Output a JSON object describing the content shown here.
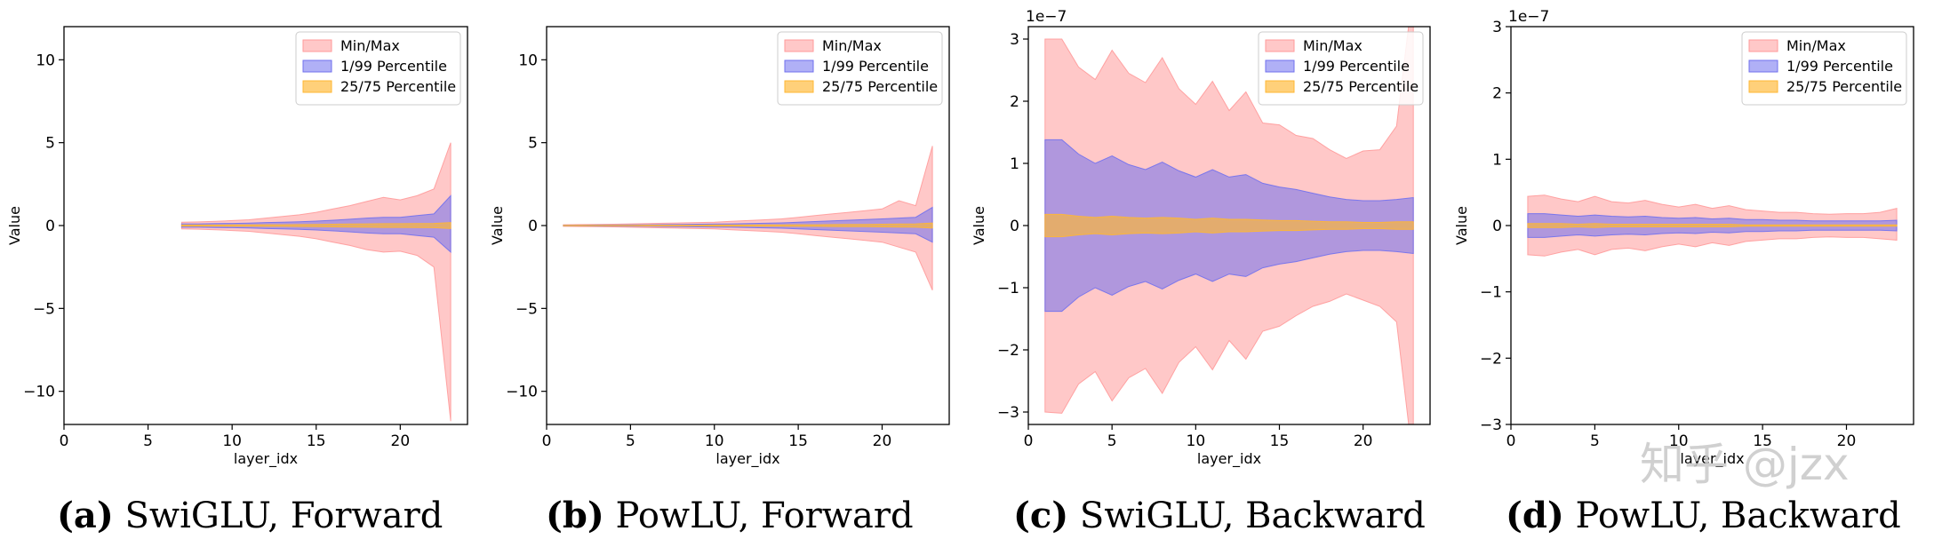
{
  "colors": {
    "minmax": "#ff9a9a",
    "p1_99": "#7070ee",
    "p25_75": "#ffb733",
    "axis": "#000000",
    "watermark": "#c8c8c8"
  },
  "watermark": "知乎 @jzx",
  "chart_data": [
    {
      "type": "area",
      "caption_label": "(a)",
      "caption_text": "SwiGLU, Forward",
      "xlabel": "layer_idx",
      "ylabel": "Value",
      "xlim": [
        0,
        24
      ],
      "ylim": [
        -12,
        12
      ],
      "xticks": [
        0,
        5,
        10,
        15,
        20
      ],
      "yticks": [
        -10,
        -5,
        0,
        5,
        10
      ],
      "exponent": "",
      "legend_position": "upper-right",
      "legend": [
        "Min/Max",
        "1/99 Percentile",
        "25/75 Percentile"
      ],
      "x": [
        7,
        8,
        9,
        10,
        11,
        12,
        13,
        14,
        15,
        16,
        17,
        18,
        19,
        20,
        21,
        22,
        23
      ],
      "series": [
        {
          "name": "Min/Max",
          "upper": [
            0.2,
            0.22,
            0.25,
            0.3,
            0.35,
            0.45,
            0.55,
            0.65,
            0.8,
            1.0,
            1.2,
            1.45,
            1.7,
            1.55,
            1.8,
            2.2,
            5.0
          ],
          "lower": [
            -0.2,
            -0.22,
            -0.25,
            -0.3,
            -0.35,
            -0.45,
            -0.55,
            -0.65,
            -0.8,
            -1.0,
            -1.2,
            -1.45,
            -1.6,
            -1.55,
            -1.8,
            -2.5,
            -11.8
          ]
        },
        {
          "name": "1/99 Percentile",
          "upper": [
            0.1,
            0.1,
            0.12,
            0.13,
            0.15,
            0.18,
            0.2,
            0.23,
            0.27,
            0.32,
            0.38,
            0.45,
            0.5,
            0.5,
            0.6,
            0.7,
            1.8
          ],
          "lower": [
            -0.1,
            -0.1,
            -0.12,
            -0.13,
            -0.15,
            -0.18,
            -0.2,
            -0.23,
            -0.27,
            -0.32,
            -0.38,
            -0.45,
            -0.5,
            -0.5,
            -0.6,
            -0.7,
            -1.6
          ]
        },
        {
          "name": "25/75 Percentile",
          "upper": [
            0.03,
            0.03,
            0.03,
            0.04,
            0.04,
            0.05,
            0.05,
            0.06,
            0.07,
            0.08,
            0.09,
            0.1,
            0.11,
            0.11,
            0.12,
            0.13,
            0.18
          ],
          "lower": [
            -0.03,
            -0.03,
            -0.03,
            -0.04,
            -0.04,
            -0.05,
            -0.05,
            -0.06,
            -0.07,
            -0.08,
            -0.09,
            -0.1,
            -0.11,
            -0.11,
            -0.12,
            -0.13,
            -0.18
          ]
        }
      ]
    },
    {
      "type": "area",
      "caption_label": "(b)",
      "caption_text": "PowLU, Forward",
      "xlabel": "layer_idx",
      "ylabel": "Value",
      "xlim": [
        0,
        24
      ],
      "ylim": [
        -12,
        12
      ],
      "xticks": [
        0,
        5,
        10,
        15,
        20
      ],
      "yticks": [
        -10,
        -5,
        0,
        5,
        10
      ],
      "exponent": "",
      "legend_position": "upper-right",
      "legend": [
        "Min/Max",
        "1/99 Percentile",
        "25/75 Percentile"
      ],
      "x": [
        1,
        2,
        3,
        4,
        5,
        6,
        7,
        8,
        9,
        10,
        11,
        12,
        13,
        14,
        15,
        16,
        17,
        18,
        19,
        20,
        21,
        22,
        23
      ],
      "series": [
        {
          "name": "Min/Max",
          "upper": [
            0.05,
            0.06,
            0.07,
            0.08,
            0.1,
            0.12,
            0.14,
            0.16,
            0.18,
            0.2,
            0.25,
            0.3,
            0.35,
            0.4,
            0.5,
            0.6,
            0.7,
            0.8,
            0.9,
            1.0,
            1.5,
            1.2,
            4.8
          ],
          "lower": [
            -0.05,
            -0.06,
            -0.07,
            -0.08,
            -0.1,
            -0.12,
            -0.14,
            -0.16,
            -0.18,
            -0.2,
            -0.25,
            -0.3,
            -0.35,
            -0.4,
            -0.5,
            -0.6,
            -0.7,
            -0.8,
            -0.9,
            -1.0,
            -1.3,
            -1.6,
            -3.9
          ]
        },
        {
          "name": "1/99 Percentile",
          "upper": [
            0.02,
            0.02,
            0.03,
            0.03,
            0.04,
            0.05,
            0.06,
            0.07,
            0.08,
            0.09,
            0.1,
            0.12,
            0.14,
            0.16,
            0.2,
            0.24,
            0.28,
            0.32,
            0.36,
            0.4,
            0.45,
            0.5,
            1.1
          ],
          "lower": [
            -0.02,
            -0.02,
            -0.03,
            -0.03,
            -0.04,
            -0.05,
            -0.06,
            -0.07,
            -0.08,
            -0.09,
            -0.1,
            -0.12,
            -0.14,
            -0.16,
            -0.2,
            -0.24,
            -0.28,
            -0.32,
            -0.36,
            -0.4,
            -0.45,
            -0.5,
            -1.0
          ]
        },
        {
          "name": "25/75 Percentile",
          "upper": [
            0.01,
            0.01,
            0.01,
            0.01,
            0.01,
            0.02,
            0.02,
            0.02,
            0.02,
            0.03,
            0.03,
            0.03,
            0.04,
            0.04,
            0.05,
            0.05,
            0.06,
            0.07,
            0.07,
            0.08,
            0.09,
            0.1,
            0.15
          ],
          "lower": [
            -0.01,
            -0.01,
            -0.01,
            -0.01,
            -0.01,
            -0.02,
            -0.02,
            -0.02,
            -0.02,
            -0.03,
            -0.03,
            -0.03,
            -0.04,
            -0.04,
            -0.05,
            -0.05,
            -0.06,
            -0.07,
            -0.07,
            -0.08,
            -0.09,
            -0.1,
            -0.15
          ]
        }
      ]
    },
    {
      "type": "area",
      "caption_label": "(c)",
      "caption_text": "SwiGLU, Backward",
      "xlabel": "layer_idx",
      "ylabel": "Value",
      "xlim": [
        0,
        24
      ],
      "ylim": [
        -3.2,
        3.2
      ],
      "xticks": [
        0,
        5,
        10,
        15,
        20
      ],
      "yticks": [
        -3,
        -2,
        -1,
        0,
        1,
        2,
        3
      ],
      "exponent": "1e−7",
      "legend_position": "upper-right",
      "legend": [
        "Min/Max",
        "1/99 Percentile",
        "25/75 Percentile"
      ],
      "x": [
        1,
        2,
        3,
        4,
        5,
        6,
        7,
        8,
        9,
        10,
        11,
        12,
        13,
        14,
        15,
        16,
        17,
        18,
        19,
        20,
        21,
        22,
        23
      ],
      "series": [
        {
          "name": "Min/Max",
          "upper": [
            3.0,
            3.0,
            2.55,
            2.35,
            2.82,
            2.45,
            2.3,
            2.7,
            2.2,
            1.95,
            2.32,
            1.85,
            2.15,
            1.65,
            1.62,
            1.45,
            1.4,
            1.22,
            1.08,
            1.2,
            1.22,
            1.6,
            null
          ],
          "lower": [
            -3.0,
            -3.02,
            -2.55,
            -2.35,
            -2.82,
            -2.45,
            -2.3,
            -2.7,
            -2.2,
            -1.95,
            -2.32,
            -1.85,
            -2.15,
            -1.7,
            -1.62,
            -1.45,
            -1.3,
            -1.22,
            -1.1,
            -1.2,
            -1.3,
            -1.55,
            null
          ]
        },
        {
          "name": "1/99 Percentile",
          "upper": [
            1.38,
            1.38,
            1.15,
            1.0,
            1.12,
            0.98,
            0.9,
            1.02,
            0.88,
            0.78,
            0.9,
            0.78,
            0.82,
            0.68,
            0.62,
            0.58,
            0.52,
            0.46,
            0.42,
            0.4,
            0.4,
            0.42,
            0.45
          ],
          "lower": [
            -1.38,
            -1.38,
            -1.15,
            -1.0,
            -1.12,
            -0.98,
            -0.9,
            -1.02,
            -0.88,
            -0.78,
            -0.9,
            -0.78,
            -0.82,
            -0.68,
            -0.62,
            -0.58,
            -0.52,
            -0.46,
            -0.42,
            -0.4,
            -0.4,
            -0.42,
            -0.45
          ]
        },
        {
          "name": "25/75 Percentile",
          "upper": [
            0.18,
            0.18,
            0.15,
            0.13,
            0.15,
            0.13,
            0.12,
            0.13,
            0.12,
            0.1,
            0.12,
            0.1,
            0.1,
            0.09,
            0.08,
            0.08,
            0.07,
            0.06,
            0.06,
            0.05,
            0.05,
            0.06,
            0.06
          ],
          "lower": [
            -0.18,
            -0.18,
            -0.15,
            -0.13,
            -0.15,
            -0.13,
            -0.12,
            -0.13,
            -0.12,
            -0.1,
            -0.12,
            -0.1,
            -0.1,
            -0.09,
            -0.08,
            -0.08,
            -0.07,
            -0.06,
            -0.06,
            -0.05,
            -0.05,
            -0.06,
            -0.06
          ]
        }
      ]
    },
    {
      "type": "area",
      "caption_label": "(d)",
      "caption_text": "PowLU, Backward",
      "xlabel": "layer_idx",
      "ylabel": "Value",
      "xlim": [
        0,
        24
      ],
      "ylim": [
        -3.0,
        3.0
      ],
      "xticks": [
        0,
        5,
        10,
        15,
        20
      ],
      "yticks": [
        -3,
        -2,
        -1,
        0,
        1,
        2,
        3
      ],
      "exponent": "1e−7",
      "legend_position": "upper-right",
      "legend": [
        "Min/Max",
        "1/99 Percentile",
        "25/75 Percentile"
      ],
      "x": [
        1,
        2,
        3,
        4,
        5,
        6,
        7,
        8,
        9,
        10,
        11,
        12,
        13,
        14,
        15,
        16,
        17,
        18,
        19,
        20,
        21,
        22,
        23
      ],
      "series": [
        {
          "name": "Min/Max",
          "upper": [
            0.44,
            0.46,
            0.4,
            0.36,
            0.44,
            0.36,
            0.34,
            0.38,
            0.32,
            0.28,
            0.32,
            0.26,
            0.3,
            0.24,
            0.22,
            0.2,
            0.2,
            0.18,
            0.17,
            0.18,
            0.18,
            0.2,
            0.26
          ],
          "lower": [
            -0.44,
            -0.46,
            -0.4,
            -0.36,
            -0.44,
            -0.36,
            -0.34,
            -0.38,
            -0.32,
            -0.28,
            -0.32,
            -0.26,
            -0.3,
            -0.24,
            -0.22,
            -0.2,
            -0.2,
            -0.18,
            -0.17,
            -0.18,
            -0.18,
            -0.2,
            -0.22
          ]
        },
        {
          "name": "1/99 Percentile",
          "upper": [
            0.18,
            0.18,
            0.16,
            0.14,
            0.16,
            0.14,
            0.13,
            0.14,
            0.12,
            0.11,
            0.12,
            0.1,
            0.11,
            0.09,
            0.09,
            0.08,
            0.08,
            0.07,
            0.07,
            0.07,
            0.07,
            0.07,
            0.08
          ],
          "lower": [
            -0.18,
            -0.18,
            -0.16,
            -0.14,
            -0.16,
            -0.14,
            -0.13,
            -0.14,
            -0.12,
            -0.11,
            -0.12,
            -0.1,
            -0.11,
            -0.09,
            -0.09,
            -0.08,
            -0.08,
            -0.07,
            -0.07,
            -0.07,
            -0.07,
            -0.07,
            -0.08
          ]
        },
        {
          "name": "25/75 Percentile",
          "upper": [
            0.03,
            0.03,
            0.03,
            0.02,
            0.03,
            0.02,
            0.02,
            0.02,
            0.02,
            0.02,
            0.02,
            0.02,
            0.02,
            0.01,
            0.01,
            0.01,
            0.01,
            0.01,
            0.01,
            0.01,
            0.01,
            0.01,
            0.01
          ],
          "lower": [
            -0.03,
            -0.03,
            -0.03,
            -0.02,
            -0.03,
            -0.02,
            -0.02,
            -0.02,
            -0.02,
            -0.02,
            -0.02,
            -0.02,
            -0.02,
            -0.01,
            -0.01,
            -0.01,
            -0.01,
            -0.01,
            -0.01,
            -0.01,
            -0.01,
            -0.01,
            -0.01
          ]
        }
      ]
    }
  ]
}
